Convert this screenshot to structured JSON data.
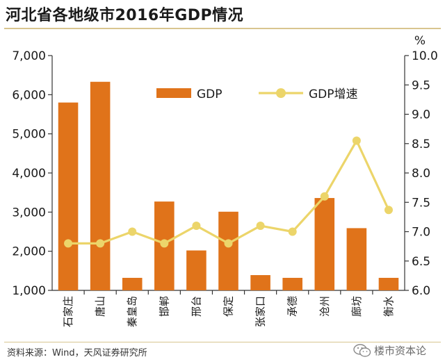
{
  "title": "河北省各地级市2016年GDP情况",
  "source": "资料来源：Wind，天风证券研究所",
  "watermark": "楼市资本论",
  "colors": {
    "bar": "#e0731a",
    "line": "#ecd56a",
    "rule": "#d8c58f"
  },
  "chart_data": {
    "type": "bar",
    "categories": [
      "石家庄",
      "唐山",
      "秦皇岛",
      "邯郸",
      "邢台",
      "保定",
      "张家口",
      "承德",
      "沧州",
      "廊坊",
      "衡水"
    ],
    "series": [
      {
        "name": "GDP",
        "type": "bar",
        "axis": "left",
        "values": [
          5800,
          6330,
          1320,
          3270,
          2020,
          3010,
          1390,
          1320,
          3360,
          2590,
          1320
        ]
      },
      {
        "name": "GDP增速",
        "type": "line",
        "axis": "right",
        "values": [
          6.8,
          6.8,
          7.0,
          6.8,
          7.1,
          6.8,
          7.1,
          7.0,
          7.6,
          8.55,
          7.37
        ]
      }
    ],
    "left_axis": {
      "ylim": [
        1000,
        7000
      ],
      "ticks": [
        1000,
        2000,
        3000,
        4000,
        5000,
        6000,
        7000
      ],
      "tick_labels": [
        "1,000",
        "2,000",
        "3,000",
        "4,000",
        "5,000",
        "6,000",
        "7,000"
      ]
    },
    "right_axis": {
      "unit": "%",
      "ylim": [
        6.0,
        10.0
      ],
      "ticks": [
        6.0,
        6.5,
        7.0,
        7.5,
        8.0,
        8.5,
        9.0,
        9.5,
        10.0
      ],
      "tick_labels": [
        "6.0",
        "6.5",
        "7.0",
        "7.5",
        "8.0",
        "8.5",
        "9.0",
        "9.5",
        "10.0"
      ]
    },
    "legend": {
      "placement": "top-center",
      "items": [
        "GDP",
        "GDP增速"
      ]
    },
    "grid": false
  }
}
